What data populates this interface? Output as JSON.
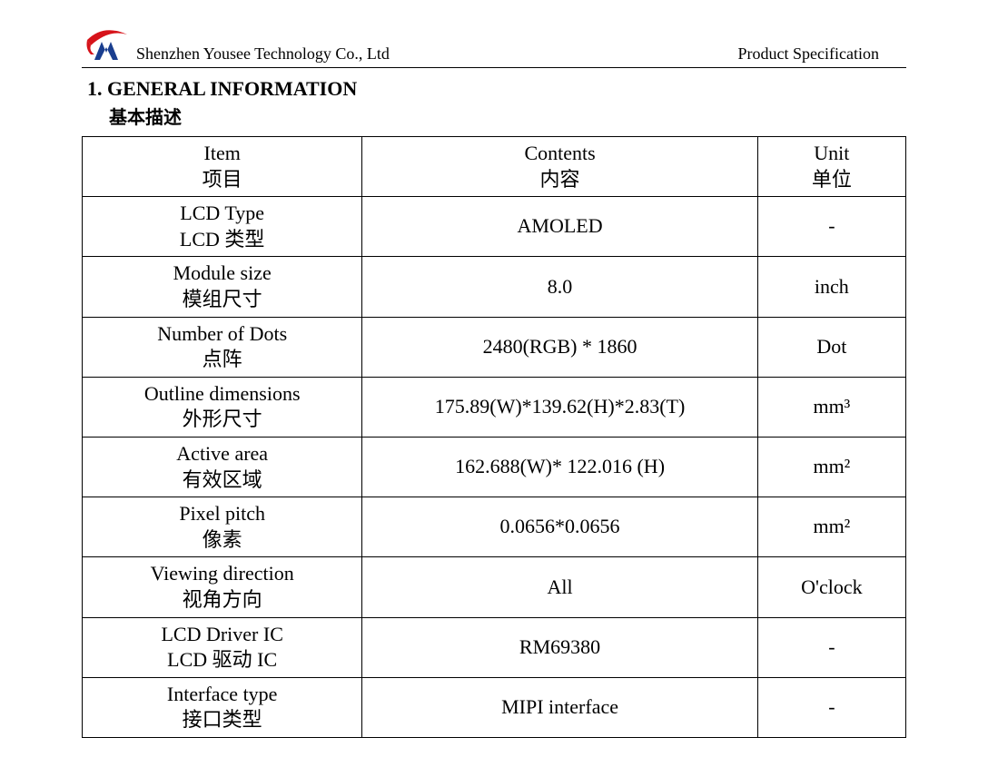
{
  "header": {
    "company": "Shenzhen Yousee Technology Co., Ltd",
    "right_label": "Product Specification",
    "logo_colors": {
      "red": "#d6131a",
      "blue": "#1a3e8f"
    }
  },
  "section": {
    "number_title": "1.  GENERAL INFORMATION",
    "subtitle_cn": "基本描述"
  },
  "table": {
    "columns": {
      "item_en": "Item",
      "item_cn": "项目",
      "contents_en": "Contents",
      "contents_cn": "内容",
      "unit_en": "Unit",
      "unit_cn": "单位"
    },
    "rows": [
      {
        "item_en": "LCD Type",
        "item_cn": "LCD 类型",
        "contents": "AMOLED",
        "unit": "-"
      },
      {
        "item_en": "Module size",
        "item_cn": "模组尺寸",
        "contents": "8.0",
        "unit": "inch"
      },
      {
        "item_en": "Number of Dots",
        "item_cn": "点阵",
        "contents": "2480(RGB) * 1860",
        "unit": "Dot"
      },
      {
        "item_en": "Outline dimensions",
        "item_cn": "外形尺寸",
        "contents": "175.89(W)*139.62(H)*2.83(T)",
        "unit": "mm³"
      },
      {
        "item_en": "Active area",
        "item_cn": "有效区域",
        "contents": "162.688(W)* 122.016 (H)",
        "unit": "mm²"
      },
      {
        "item_en": "Pixel pitch",
        "item_cn": "像素",
        "contents": "0.0656*0.0656",
        "unit": "mm²"
      },
      {
        "item_en": "Viewing direction",
        "item_cn": "视角方向",
        "contents": "All",
        "unit": "O'clock"
      },
      {
        "item_en": "LCD Driver IC",
        "item_cn": "LCD 驱动 IC",
        "contents": "RM69380",
        "unit": "-"
      },
      {
        "item_en": "Interface type",
        "item_cn": "接口类型",
        "contents": "MIPI interface",
        "unit": "-"
      }
    ],
    "border_color": "#000000",
    "font_size_pt": 16
  }
}
